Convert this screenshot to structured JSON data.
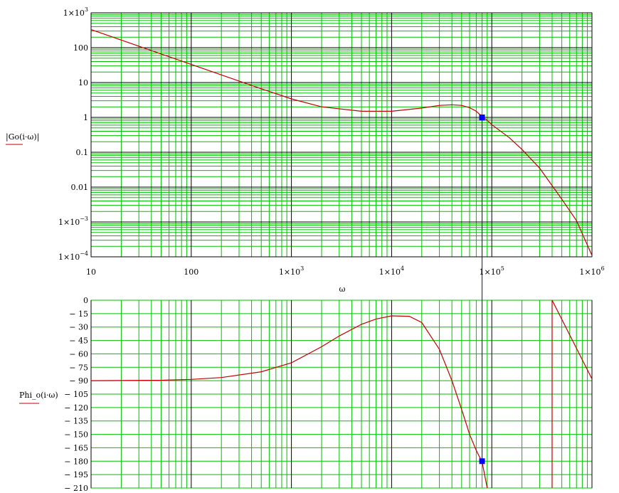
{
  "colors": {
    "background": "#ffffff",
    "grid_minor": "#00c000",
    "grid_major": "#000000",
    "curve": "#c00000",
    "marker": "#0000ff",
    "cursor_line": "#0000ff",
    "label_underline": "#c00000"
  },
  "chart_data": [
    {
      "type": "line",
      "title": "",
      "xlabel": "ω",
      "ylabel": "|Go(i·ω)|",
      "xscale": "log",
      "yscale": "log",
      "xlim": [
        10,
        1000000
      ],
      "ylim": [
        0.0001,
        1000
      ],
      "grid": true,
      "legend": "none",
      "x_ticks": [
        {
          "value": 10,
          "mant": "10",
          "exp": ""
        },
        {
          "value": 100,
          "mant": "100",
          "exp": ""
        },
        {
          "value": 1000,
          "mant": "1×10",
          "exp": "3"
        },
        {
          "value": 10000,
          "mant": "1×10",
          "exp": "4"
        },
        {
          "value": 100000,
          "mant": "1×10",
          "exp": "5"
        },
        {
          "value": 1000000,
          "mant": "1×10",
          "exp": "6"
        }
      ],
      "y_ticks": [
        {
          "value": 1000,
          "mant": "1×10",
          "exp": "3"
        },
        {
          "value": 100,
          "mant": "100",
          "exp": ""
        },
        {
          "value": 10,
          "mant": "10",
          "exp": ""
        },
        {
          "value": 1,
          "mant": "1",
          "exp": ""
        },
        {
          "value": 0.1,
          "mant": "0.1",
          "exp": ""
        },
        {
          "value": 0.01,
          "mant": "0.01",
          "exp": ""
        },
        {
          "value": 0.001,
          "mant": "1×10",
          "exp": "−3"
        },
        {
          "value": 0.0001,
          "mant": "1×10",
          "exp": "−4"
        }
      ],
      "series": [
        {
          "x": [
            10,
            20,
            50,
            100,
            200,
            500,
            1000,
            2000,
            5000,
            10000,
            20000,
            30000,
            40000,
            50000,
            60000,
            70000,
            80000,
            90000,
            100000,
            150000,
            200000,
            300000,
            500000,
            700000,
            1000000
          ],
          "y": [
            330,
            165,
            66,
            33,
            16.5,
            6.6,
            3.4,
            2.0,
            1.5,
            1.5,
            1.85,
            2.2,
            2.3,
            2.2,
            1.9,
            1.5,
            1.05,
            0.82,
            0.62,
            0.26,
            0.12,
            0.035,
            0.0045,
            0.0011,
            0.00011
          ]
        }
      ],
      "marker": {
        "x": 80000,
        "y": 1
      }
    },
    {
      "type": "line",
      "title": "",
      "xlabel": "",
      "ylabel": "Phi_o(i·ω)",
      "xscale": "log",
      "yscale": "linear",
      "xlim": [
        10,
        1000000
      ],
      "ylim": [
        -210,
        0
      ],
      "grid": true,
      "legend": "none",
      "y_ticks": [
        0,
        -15,
        -30,
        -45,
        -60,
        -75,
        -90,
        -105,
        -120,
        -135,
        -150,
        -165,
        -180,
        -195,
        -210
      ],
      "series": [
        {
          "x": [
            10,
            50,
            100,
            200,
            500,
            1000,
            2000,
            3000,
            5000,
            7000,
            10000,
            15000,
            20000,
            30000,
            40000,
            50000,
            60000,
            70000,
            80000,
            90000
          ],
          "y": [
            -90,
            -89.5,
            -88.5,
            -86.5,
            -80,
            -70,
            -52,
            -40,
            -27,
            -21,
            -17.5,
            -18,
            -25,
            -55,
            -90,
            -122,
            -150,
            -168,
            -181,
            -210
          ]
        },
        {
          "x": [
            400000,
            1000000
          ],
          "y": [
            0,
            -88
          ]
        }
      ],
      "marker": {
        "x": 80000,
        "y": -180
      }
    }
  ]
}
